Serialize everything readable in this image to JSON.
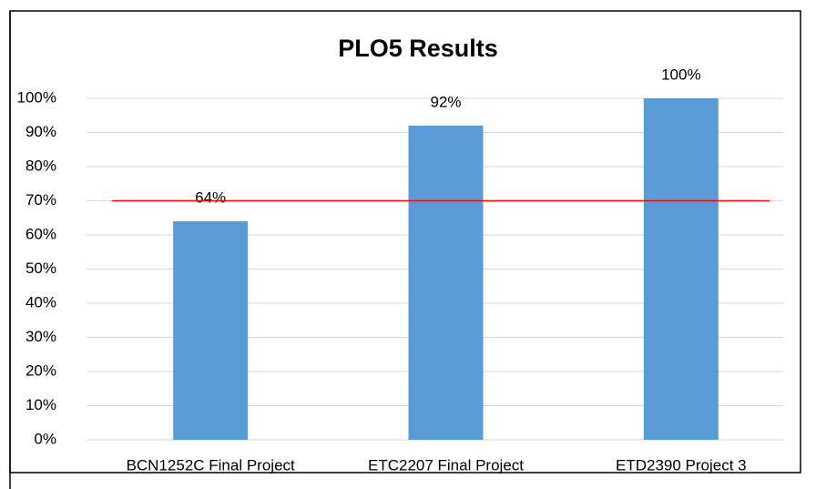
{
  "chart_data": {
    "type": "bar",
    "title": "PLO5 Results",
    "categories": [
      "BCN1252C Final Project",
      "ETC2207 Final Project",
      "ETD2390 Project 3"
    ],
    "values": [
      64,
      92,
      100
    ],
    "value_labels": [
      "64%",
      "92%",
      "100%"
    ],
    "color": "#5b9bd5",
    "ylim": [
      0,
      100
    ],
    "yticks": [
      {
        "value": 0,
        "label": "0%"
      },
      {
        "value": 10,
        "label": "10%"
      },
      {
        "value": 20,
        "label": "20%"
      },
      {
        "value": 30,
        "label": "30%"
      },
      {
        "value": 40,
        "label": "40%"
      },
      {
        "value": 50,
        "label": "50%"
      },
      {
        "value": 60,
        "label": "60%"
      },
      {
        "value": 70,
        "label": "70%"
      },
      {
        "value": 80,
        "label": "80%"
      },
      {
        "value": 90,
        "label": "90%"
      },
      {
        "value": 100,
        "label": "100%"
      }
    ],
    "grid": true,
    "reference_line": {
      "value": 70,
      "color": "#ff0000"
    }
  }
}
